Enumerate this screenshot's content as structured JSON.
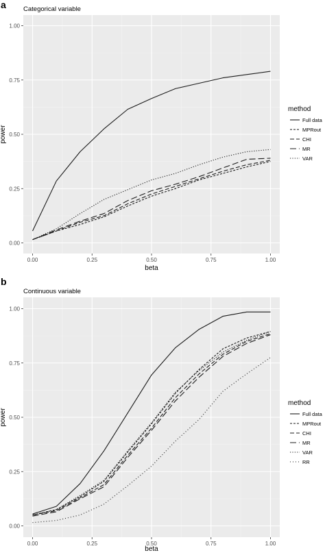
{
  "panels": [
    {
      "tag": "a",
      "subtitle": "Categorical variable",
      "xlabel": "beta",
      "ylabel": "power",
      "legend_title": "method"
    },
    {
      "tag": "b",
      "subtitle": "Continuous variable",
      "xlabel": "beta",
      "ylabel": "power",
      "legend_title": "method"
    }
  ],
  "colors": {
    "panel_bg": "#ebebeb",
    "grid_major": "#ffffff",
    "grid_minor": "#f5f5f5",
    "line": "#1a1a1a",
    "text": "#000000",
    "tick_text": "#4d4d4d"
  },
  "chart_data": [
    {
      "type": "line",
      "subtitle": "Categorical variable",
      "xlabel": "beta",
      "ylabel": "power",
      "xlim": [
        0,
        1
      ],
      "ylim": [
        0,
        1
      ],
      "x_ticks": [
        "0.00",
        "0.25",
        "0.50",
        "0.75",
        "1.00"
      ],
      "y_ticks": [
        "0.00",
        "0.25",
        "0.50",
        "0.75",
        "1.00"
      ],
      "grid": true,
      "legend_title": "method",
      "legend_position": "right",
      "x": [
        0,
        0.1,
        0.2,
        0.3,
        0.4,
        0.5,
        0.6,
        0.7,
        0.8,
        0.9,
        1.0
      ],
      "series": [
        {
          "name": "Full data",
          "dash": "solid",
          "values": [
            0.055,
            0.285,
            0.42,
            0.525,
            0.615,
            0.665,
            0.71,
            0.735,
            0.76,
            0.775,
            0.79
          ]
        },
        {
          "name": "MPRout",
          "dash": "dashed-short",
          "values": [
            0.015,
            0.055,
            0.085,
            0.12,
            0.17,
            0.215,
            0.25,
            0.29,
            0.32,
            0.35,
            0.375
          ]
        },
        {
          "name": "CHI",
          "dash": "dashed",
          "values": [
            0.015,
            0.055,
            0.095,
            0.125,
            0.18,
            0.225,
            0.26,
            0.295,
            0.33,
            0.36,
            0.38
          ]
        },
        {
          "name": "MR",
          "dash": "dashed-long",
          "values": [
            0.015,
            0.06,
            0.1,
            0.135,
            0.195,
            0.24,
            0.27,
            0.305,
            0.345,
            0.385,
            0.39
          ]
        },
        {
          "name": "VAR",
          "dash": "dotted",
          "values": [
            0.015,
            0.065,
            0.135,
            0.2,
            0.245,
            0.29,
            0.32,
            0.36,
            0.395,
            0.42,
            0.43
          ]
        }
      ]
    },
    {
      "type": "line",
      "subtitle": "Continuous variable",
      "xlabel": "beta",
      "ylabel": "power",
      "xlim": [
        0,
        1
      ],
      "ylim": [
        0,
        1
      ],
      "x_ticks": [
        "0.00",
        "0.25",
        "0.50",
        "0.75",
        "1.00"
      ],
      "y_ticks": [
        "0.00",
        "0.25",
        "0.50",
        "0.75",
        "1.00"
      ],
      "grid": true,
      "legend_title": "method",
      "legend_position": "right",
      "x": [
        0,
        0.1,
        0.2,
        0.3,
        0.4,
        0.5,
        0.6,
        0.7,
        0.8,
        0.9,
        1.0
      ],
      "series": [
        {
          "name": "Full data",
          "dash": "solid",
          "values": [
            0.055,
            0.09,
            0.195,
            0.345,
            0.52,
            0.695,
            0.82,
            0.905,
            0.965,
            0.985,
            0.985
          ]
        },
        {
          "name": "MPRout",
          "dash": "dashed-short",
          "values": [
            0.05,
            0.075,
            0.135,
            0.205,
            0.34,
            0.47,
            0.61,
            0.72,
            0.815,
            0.865,
            0.895
          ]
        },
        {
          "name": "CHI",
          "dash": "dashed",
          "values": [
            0.05,
            0.07,
            0.13,
            0.19,
            0.325,
            0.45,
            0.59,
            0.7,
            0.79,
            0.85,
            0.885
          ]
        },
        {
          "name": "MR",
          "dash": "dashed-long",
          "values": [
            0.045,
            0.065,
            0.125,
            0.18,
            0.315,
            0.44,
            0.575,
            0.685,
            0.78,
            0.84,
            0.88
          ]
        },
        {
          "name": "VAR",
          "dash": "dotted",
          "values": [
            0.05,
            0.075,
            0.14,
            0.21,
            0.345,
            0.475,
            0.615,
            0.715,
            0.8,
            0.855,
            0.895
          ]
        },
        {
          "name": "RR",
          "dash": "dotted-fine",
          "values": [
            0.015,
            0.025,
            0.05,
            0.1,
            0.185,
            0.275,
            0.39,
            0.49,
            0.62,
            0.7,
            0.775
          ]
        }
      ]
    }
  ]
}
